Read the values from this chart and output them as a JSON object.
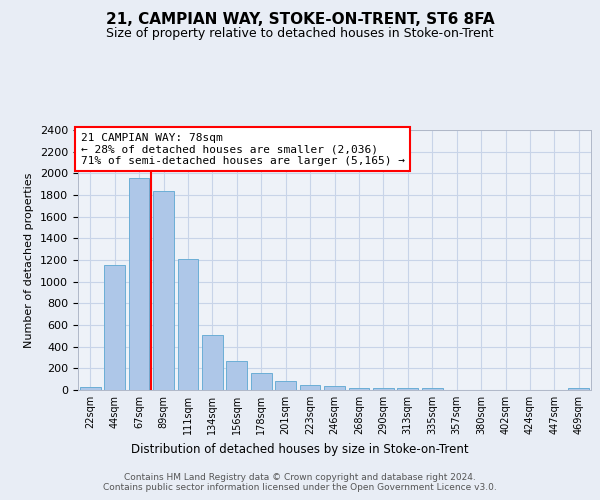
{
  "title": "21, CAMPIAN WAY, STOKE-ON-TRENT, ST6 8FA",
  "subtitle": "Size of property relative to detached houses in Stoke-on-Trent",
  "xlabel": "Distribution of detached houses by size in Stoke-on-Trent",
  "ylabel": "Number of detached properties",
  "categories": [
    "22sqm",
    "44sqm",
    "67sqm",
    "89sqm",
    "111sqm",
    "134sqm",
    "156sqm",
    "178sqm",
    "201sqm",
    "223sqm",
    "246sqm",
    "268sqm",
    "290sqm",
    "313sqm",
    "335sqm",
    "357sqm",
    "380sqm",
    "402sqm",
    "424sqm",
    "447sqm",
    "469sqm"
  ],
  "values": [
    30,
    1150,
    1960,
    1840,
    1210,
    510,
    265,
    155,
    80,
    45,
    40,
    20,
    20,
    15,
    15,
    0,
    0,
    0,
    0,
    0,
    20
  ],
  "bar_color": "#aec7e8",
  "bar_edge_color": "#6baed6",
  "property_label": "21 CAMPIAN WAY: 78sqm",
  "annotation_line1": "← 28% of detached houses are smaller (2,036)",
  "annotation_line2": "71% of semi-detached houses are larger (5,165) →",
  "vline_x": 2.5,
  "ylim": [
    0,
    2400
  ],
  "yticks": [
    0,
    200,
    400,
    600,
    800,
    1000,
    1200,
    1400,
    1600,
    1800,
    2000,
    2200,
    2400
  ],
  "footer_line1": "Contains HM Land Registry data © Crown copyright and database right 2024.",
  "footer_line2": "Contains public sector information licensed under the Open Government Licence v3.0.",
  "bg_color": "#e8edf5",
  "plot_bg_color": "#eef2f8",
  "grid_color": "#c8d4e8"
}
